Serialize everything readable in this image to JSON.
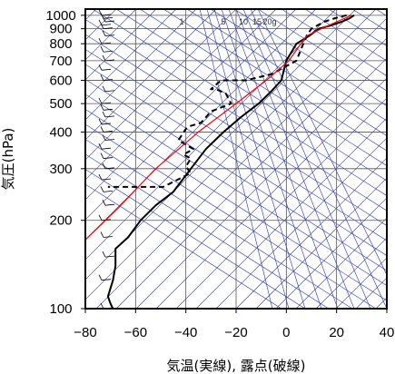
{
  "chart_data": {
    "type": "line",
    "title": "",
    "xlabel": "気温(実線), 露点(破線)",
    "ylabel": "気圧(hPa)",
    "xlim": [
      -80,
      40
    ],
    "ylim": [
      1050,
      100
    ],
    "yscale": "log",
    "x_ticks": [
      -80,
      -60,
      -40,
      -20,
      0,
      20,
      40
    ],
    "x_tick_labels": [
      "−80",
      "−60",
      "−40",
      "−20",
      "0",
      "20",
      "40"
    ],
    "y_ticks": [
      100,
      200,
      300,
      400,
      500,
      600,
      700,
      800,
      900,
      1000
    ],
    "y_tick_labels": [
      "100",
      "200",
      "300",
      "400",
      "500",
      "600",
      "700",
      "800",
      "900",
      "1000"
    ],
    "grid": true,
    "mixing_ratio_labels": [
      "1",
      "5",
      "10",
      "15",
      "20g"
    ],
    "colors": {
      "temperature": "#000000",
      "dewpoint": "#000000",
      "parcel": "#ff0000",
      "background_lines": "#2030d0",
      "grid": "#555555"
    },
    "series": [
      {
        "id": "temperature",
        "style": "solid",
        "x": [
          27,
          25,
          22,
          18,
          13,
          9,
          4,
          0,
          -2,
          -6,
          -11,
          -18,
          -25,
          -32,
          -38,
          -45,
          -52,
          -58,
          -63,
          -68,
          -68,
          -69,
          -71,
          -70,
          -69
        ],
        "y": [
          1000,
          975,
          950,
          925,
          900,
          850,
          800,
          700,
          600,
          550,
          500,
          450,
          400,
          350,
          300,
          250,
          225,
          200,
          175,
          160,
          140,
          125,
          110,
          104,
          100
        ]
      },
      {
        "id": "dewpoint",
        "style": "dashed",
        "x": [
          24,
          19,
          15,
          10,
          8,
          4,
          -6,
          -16,
          -26,
          -30,
          -28,
          -24,
          -22,
          -30,
          -34,
          -38,
          -40,
          -43,
          -37,
          -41,
          -38,
          -40,
          -38,
          -49,
          -71
        ],
        "y": [
          1000,
          975,
          950,
          900,
          850,
          700,
          630,
          600,
          600,
          560,
          560,
          540,
          500,
          470,
          430,
          420,
          410,
          375,
          350,
          335,
          325,
          305,
          290,
          260,
          260
        ]
      },
      {
        "id": "parcel",
        "style": "solid",
        "x": [
          26,
          20,
          14,
          8,
          1,
          -8,
          -20,
          -35,
          -52,
          -67,
          -87
        ],
        "y": [
          1000,
          950,
          900,
          850,
          700,
          600,
          500,
          400,
          300,
          220,
          150
        ]
      }
    ],
    "wind_barbs_note": "",
    "barb_pressures": [
      1000,
      975,
      950,
      925,
      900,
      850,
      800,
      750,
      700,
      650,
      600,
      550,
      500,
      475,
      450,
      425,
      400,
      375,
      350,
      325,
      300,
      275,
      250,
      225,
      200,
      175,
      150,
      125,
      100
    ]
  }
}
